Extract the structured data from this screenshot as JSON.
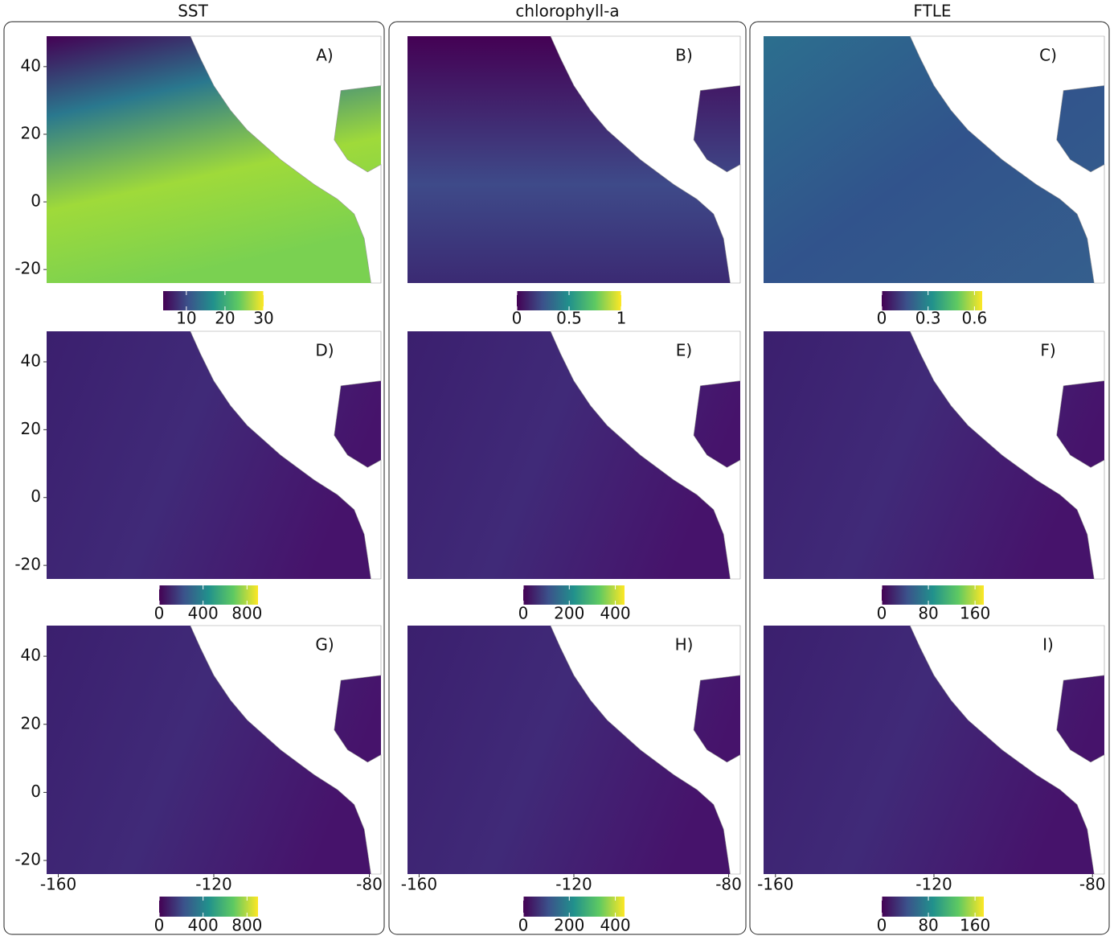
{
  "columns": [
    {
      "title": "SST",
      "panels": [
        {
          "label": "A)",
          "colorbar": {
            "lim": [
              4,
              30
            ],
            "ticks": [
              10,
              20,
              30
            ]
          }
        },
        {
          "label": "D)",
          "colorbar": {
            "lim": [
              0,
              900
            ],
            "ticks": [
              0,
              400,
              800
            ]
          }
        },
        {
          "label": "G)",
          "colorbar": {
            "lim": [
              0,
              900
            ],
            "ticks": [
              0,
              400,
              800
            ]
          }
        }
      ]
    },
    {
      "title": "chlorophyll-a",
      "panels": [
        {
          "label": "B)",
          "colorbar": {
            "lim": [
              0,
              1
            ],
            "ticks": [
              0,
              0.5,
              1
            ]
          }
        },
        {
          "label": "E)",
          "colorbar": {
            "lim": [
              0,
              440
            ],
            "ticks": [
              0,
              200,
              400
            ]
          }
        },
        {
          "label": "H)",
          "colorbar": {
            "lim": [
              0,
              440
            ],
            "ticks": [
              0,
              200,
              400
            ]
          }
        }
      ]
    },
    {
      "title": "FTLE",
      "panels": [
        {
          "label": "C)",
          "colorbar": {
            "lim": [
              0,
              0.65
            ],
            "ticks": [
              0,
              0.3,
              0.6
            ]
          }
        },
        {
          "label": "F)",
          "colorbar": {
            "lim": [
              0,
              175
            ],
            "ticks": [
              0,
              80,
              160
            ]
          }
        },
        {
          "label": "I)",
          "colorbar": {
            "lim": [
              0,
              175
            ],
            "ticks": [
              0,
              80,
              160
            ]
          }
        }
      ]
    }
  ],
  "map": {
    "xlim": [
      -163,
      -77
    ],
    "ylim": [
      -24,
      49
    ],
    "xticks": [
      -160,
      -120,
      -80
    ],
    "yticks": [
      40,
      20,
      0,
      -20
    ]
  }
}
